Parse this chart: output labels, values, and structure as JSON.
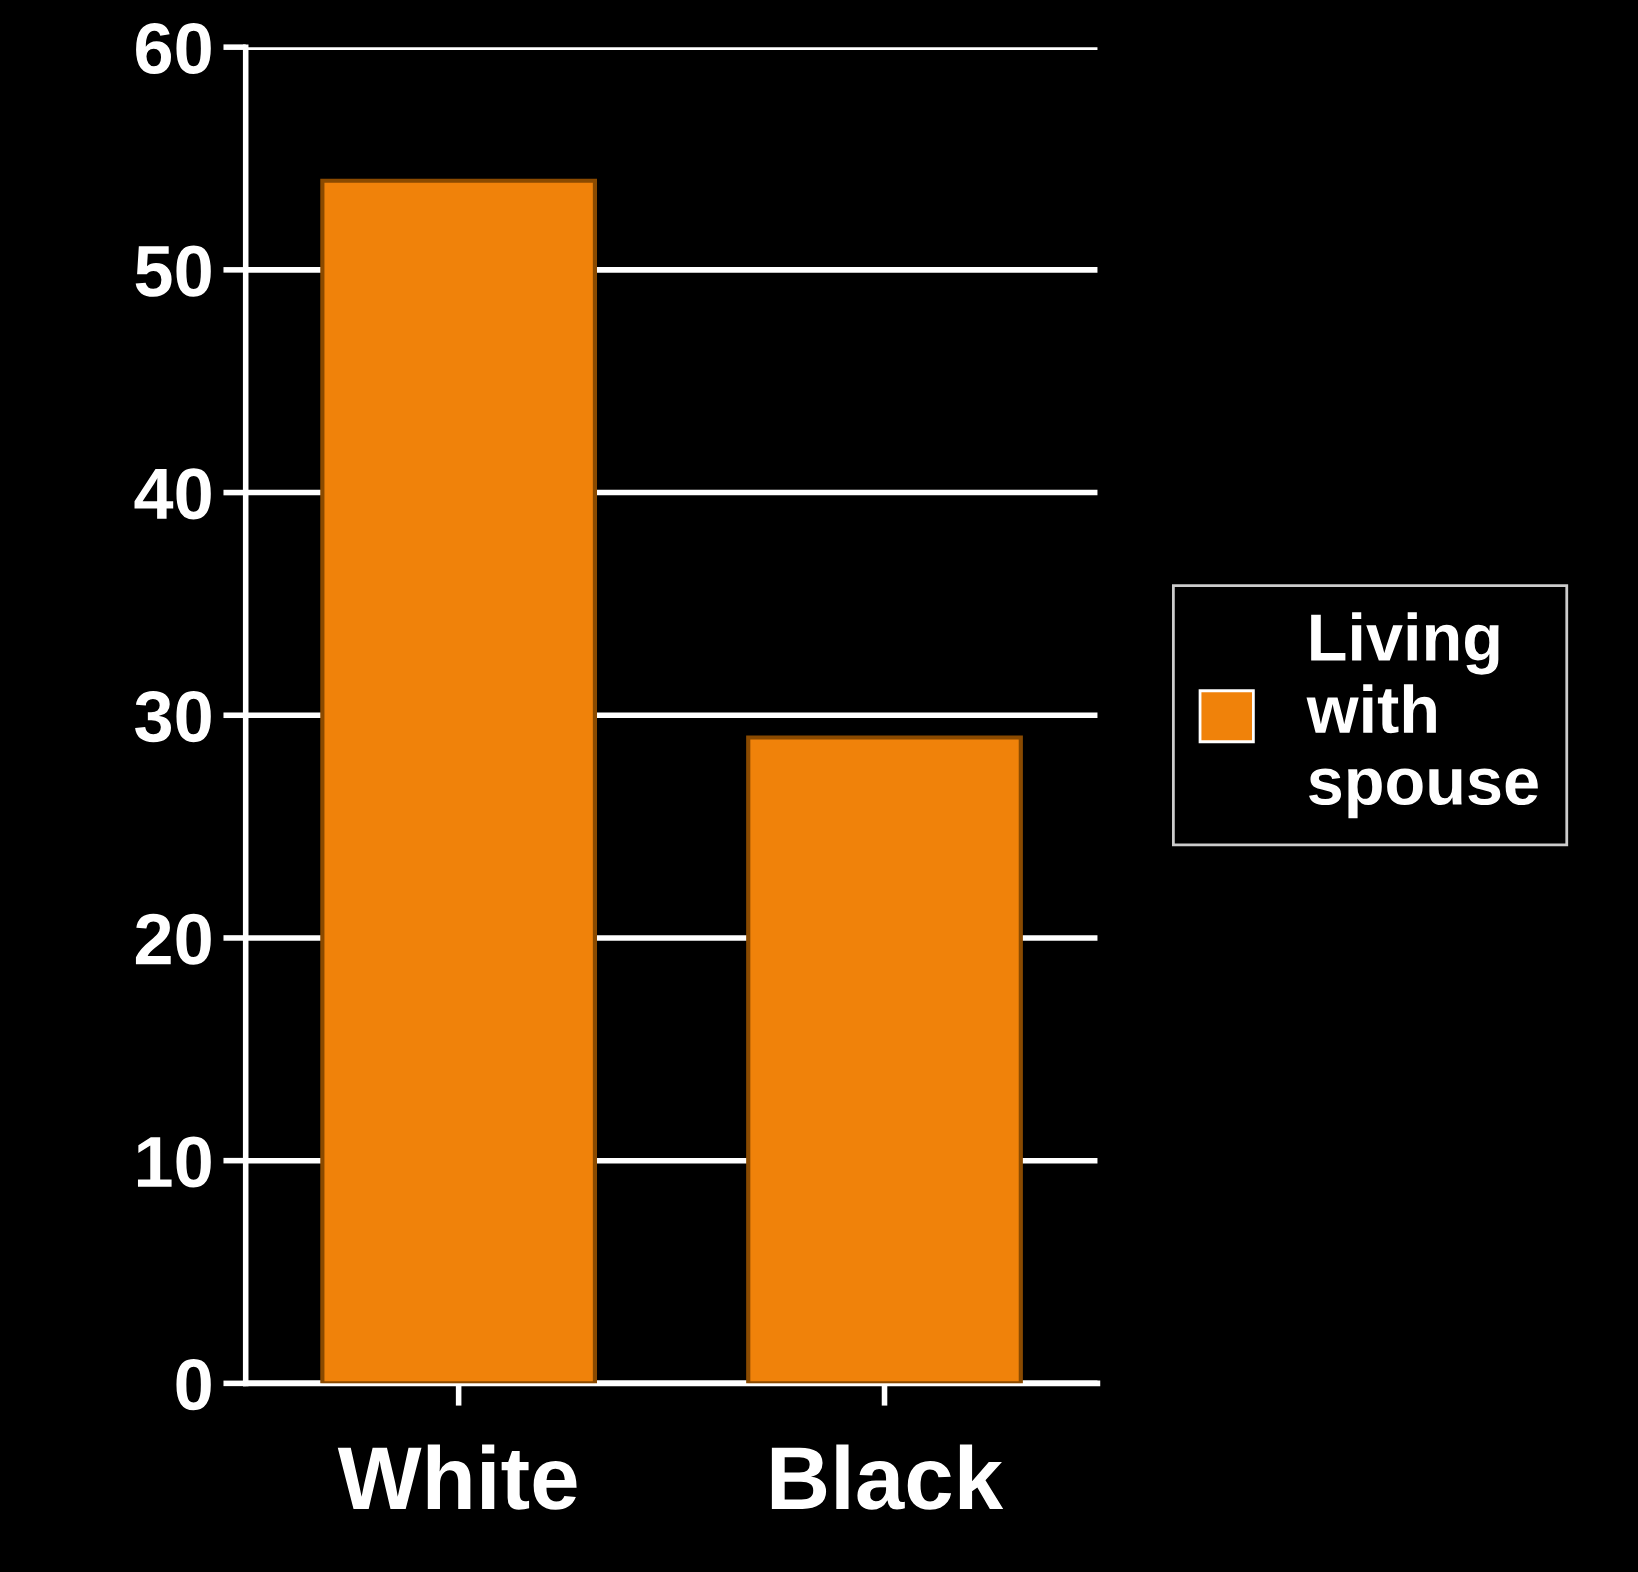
{
  "chart_data": {
    "type": "bar",
    "categories": [
      "White",
      "Black"
    ],
    "series": [
      {
        "name": "Living with spouse",
        "color": "#f0820a",
        "values": [
          54,
          29
        ]
      }
    ],
    "ylim": [
      0,
      60
    ],
    "yticks": [
      0,
      10,
      20,
      30,
      40,
      50,
      60
    ],
    "grid": "y",
    "legend": "right"
  }
}
